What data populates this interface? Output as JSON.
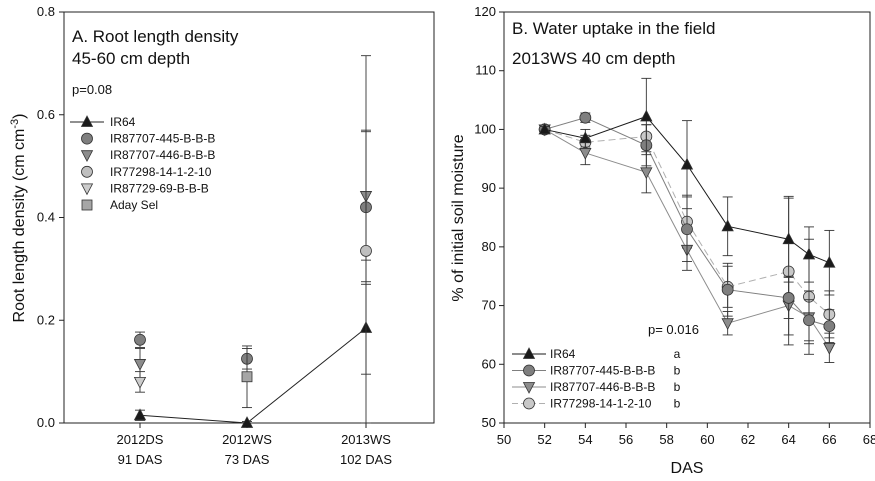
{
  "chart_data": [
    {
      "type": "line",
      "panel": "A",
      "title": "A. Root length density",
      "subtitle": "45-60 cm depth",
      "annotation": "p=0.08",
      "ylabel": "Root length density (cm cm-3)",
      "ylabel_parts": {
        "base": "Root length density (cm cm",
        "sup": "-3",
        "end": ")"
      },
      "xlabel": "",
      "ylim": [
        0,
        0.8
      ],
      "yticks": [
        "0.0",
        "0.2",
        "0.4",
        "0.6",
        "0.8"
      ],
      "categories": [
        {
          "l1": "2012DS",
          "l2": "91 DAS"
        },
        {
          "l1": "2012WS",
          "l2": "73 DAS"
        },
        {
          "l1": "2013WS",
          "l2": "102 DAS"
        }
      ],
      "legend_position": "upper-left",
      "series": [
        {
          "name": "IR64",
          "marker": "triangle-up",
          "color": "#1a1a1a",
          "line": true,
          "values": [
            0.015,
            0.0,
            0.185
          ],
          "err": [
            0.01,
            0.003,
            0.09
          ]
        },
        {
          "name": "IR87707-445-B-B-B",
          "marker": "circle",
          "color": "#7f7f7f",
          "values": [
            0.162,
            0.125,
            0.42
          ],
          "err": [
            0.015,
            0.02,
            0.15
          ]
        },
        {
          "name": "IR87707-446-B-B-B",
          "marker": "triangle-down",
          "color": "#8c8c8c",
          "values": [
            0.115,
            null,
            0.442
          ],
          "err": [
            0.03,
            null,
            0.125
          ]
        },
        {
          "name": "IR77298-14-1-2-10",
          "marker": "circle",
          "color": "#bfbfbf",
          "values": [
            null,
            null,
            0.335
          ],
          "err": [
            null,
            null,
            0.38
          ]
        },
        {
          "name": "IR87729-69-B-B-B",
          "marker": "triangle-down",
          "color": "#cccccc",
          "values": [
            0.08,
            null,
            null
          ],
          "err": [
            0.02,
            null,
            null
          ]
        },
        {
          "name": "Aday Sel",
          "marker": "square",
          "color": "#a6a6a6",
          "values": [
            null,
            0.09,
            null
          ],
          "err": [
            null,
            0.06,
            null
          ]
        }
      ]
    },
    {
      "type": "line",
      "panel": "B",
      "title": "B. Water uptake in the field",
      "subtitle": "2013WS 40 cm depth",
      "annotation": "p= 0.016",
      "xlabel": "DAS",
      "ylabel": "% of initial soil moisture",
      "xlim": [
        50,
        68
      ],
      "ylim": [
        50,
        120
      ],
      "xticks": [
        "50",
        "52",
        "54",
        "56",
        "58",
        "60",
        "62",
        "64",
        "66",
        "68"
      ],
      "yticks": [
        "50",
        "60",
        "70",
        "80",
        "90",
        "100",
        "110",
        "120"
      ],
      "legend_position": "lower-left",
      "series": [
        {
          "name": "IR64",
          "sig": "a",
          "marker": "triangle-up",
          "color": "#1a1a1a",
          "linecolor": "#1a1a1a",
          "dash": false,
          "x": [
            52,
            54,
            57,
            59,
            61,
            64,
            65,
            66
          ],
          "values": [
            100,
            98.5,
            102.2,
            94,
            83.5,
            81.3,
            78.7,
            77.3
          ],
          "err": [
            0.5,
            1.5,
            6.5,
            7.5,
            5,
            7.3,
            4.7,
            5.5
          ]
        },
        {
          "name": "IR87707-445-B-B-B",
          "sig": "b",
          "marker": "circle",
          "color": "#7f7f7f",
          "linecolor": "#7f7f7f",
          "dash": false,
          "x": [
            52,
            54,
            57,
            59,
            61,
            64,
            65,
            66
          ],
          "values": [
            100,
            102,
            97.3,
            83,
            72.7,
            71.3,
            67.5,
            66.5
          ],
          "err": [
            0.5,
            0.8,
            3.5,
            5.5,
            4.5,
            3.5,
            3.5,
            2.8
          ]
        },
        {
          "name": "IR87707-446-B-B-B",
          "sig": "b",
          "marker": "triangle-down",
          "color": "#8c8c8c",
          "linecolor": "#8c8c8c",
          "dash": false,
          "x": [
            52,
            54,
            57,
            59,
            61,
            64,
            65,
            66
          ],
          "values": [
            100,
            96,
            92.7,
            79.5,
            67,
            70,
            68,
            62.8
          ],
          "err": [
            0.5,
            2,
            3.5,
            3.5,
            2,
            5,
            4.5,
            2.5
          ]
        },
        {
          "name": "IR77298-14-1-2-10",
          "sig": "b",
          "marker": "circle",
          "color": "#c8c8c8",
          "linecolor": "#b0b0b0",
          "dash": true,
          "x": [
            52,
            54,
            57,
            59,
            61,
            64,
            65,
            66
          ],
          "values": [
            100,
            97.8,
            98.8,
            84.3,
            73.2,
            75.8,
            71.5,
            68.5
          ],
          "err": [
            0.5,
            1.2,
            2,
            4.5,
            3.5,
            12.5,
            9.8,
            4
          ]
        }
      ]
    }
  ]
}
